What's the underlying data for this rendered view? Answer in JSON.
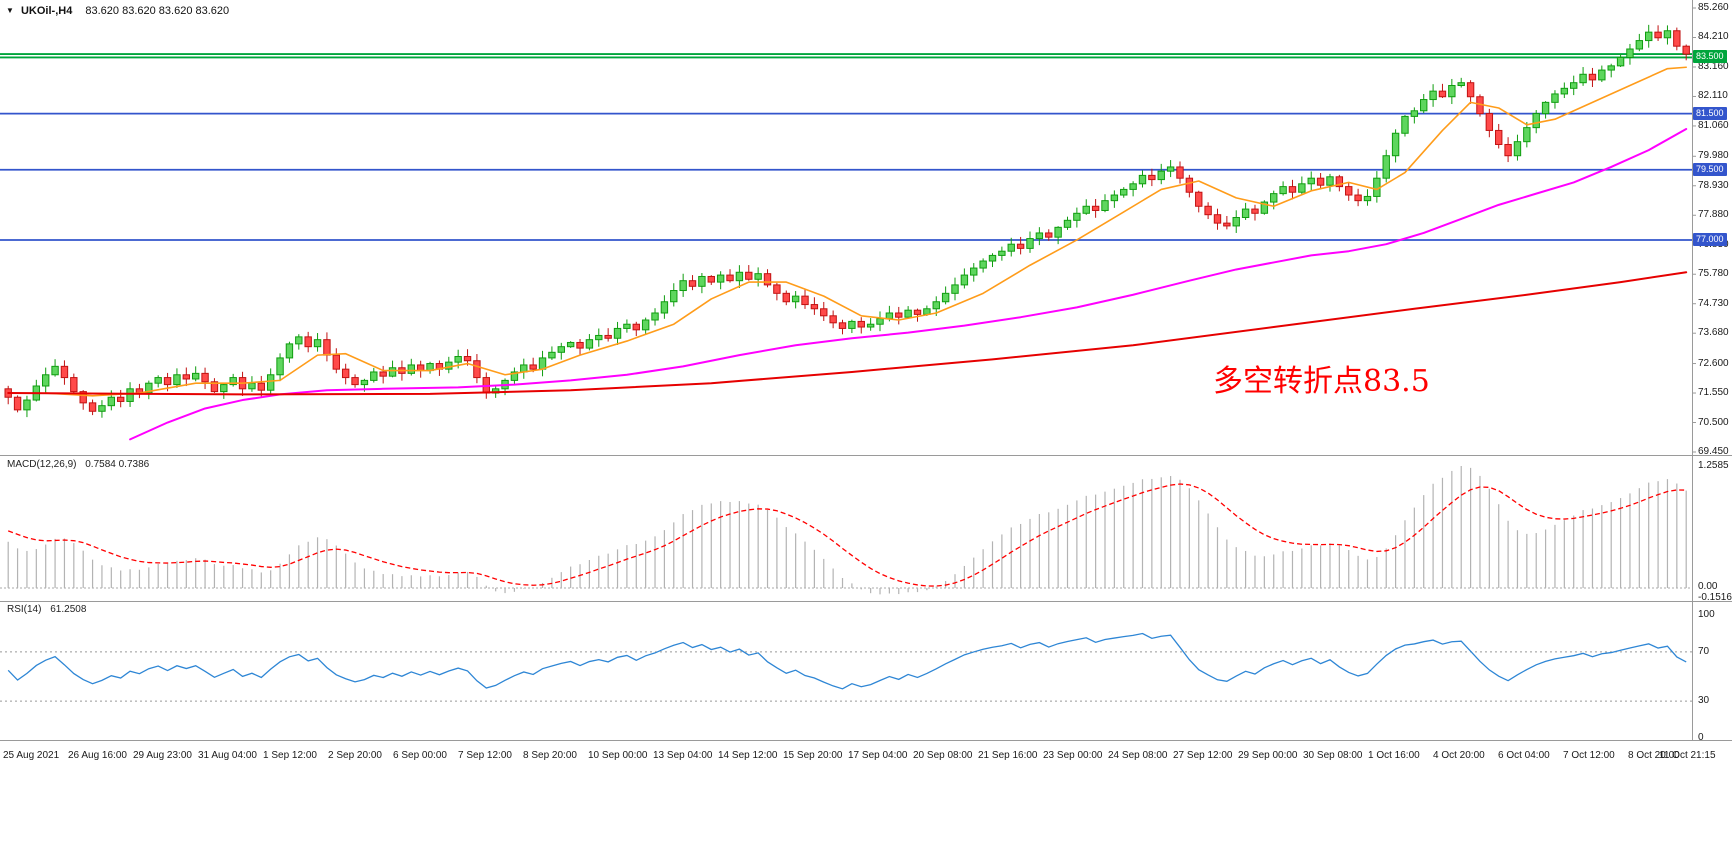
{
  "header": {
    "expander": "▼",
    "symbol": "UKOil-,H4",
    "quotes": "83.620 83.620 83.620 83.620"
  },
  "annotation": {
    "text": "多空转折点83.5",
    "color": "#ff0000"
  },
  "price_axis": {
    "labels": [
      "85.260",
      "84.210",
      "83.160",
      "82.110",
      "81.060",
      "79.980",
      "78.930",
      "77.880",
      "76.830",
      "75.780",
      "74.730",
      "73.680",
      "72.600",
      "71.550",
      "70.500",
      "69.450"
    ]
  },
  "time_axis": {
    "labels": [
      "25 Aug 2021",
      "26 Aug 16:00",
      "29 Aug 23:00",
      "31 Aug 04:00",
      "1 Sep 12:00",
      "2 Sep 20:00",
      "6 Sep 00:00",
      "7 Sep 12:00",
      "8 Sep 20:00",
      "10 Sep 00:00",
      "13 Sep 04:00",
      "14 Sep 12:00",
      "15 Sep 20:00",
      "17 Sep 04:00",
      "20 Sep 08:00",
      "21 Sep 16:00",
      "23 Sep 00:00",
      "24 Sep 08:00",
      "27 Sep 12:00",
      "29 Sep 00:00",
      "30 Sep 08:00",
      "1 Oct 16:00",
      "4 Oct 20:00",
      "6 Oct 04:00",
      "7 Oct 12:00",
      "8 Oct 20:00",
      "11 Oct 21:15"
    ]
  },
  "colors": {
    "background": "#ffffff",
    "candle_up": "#5ed65e",
    "candle_up_border": "#0f9d0f",
    "candle_down": "#ff4a4a",
    "candle_down_border": "#c11212",
    "macd_bar": "#b3b3b3",
    "macd_signal": "#ff0000",
    "rsi_line": "#2e86d5",
    "grid": "#9a9a9a",
    "hline_blue": "#3355cc",
    "hline_green": "#00a53c",
    "annotation_red": "#ff0000"
  },
  "chart_data": [
    {
      "type": "candlestick",
      "title": "UKOil- H4",
      "ylim": [
        69.45,
        85.26
      ],
      "open_first": 71.7,
      "closes": [
        71.4,
        70.95,
        71.3,
        71.8,
        72.2,
        72.5,
        72.1,
        71.6,
        71.2,
        70.9,
        71.1,
        71.4,
        71.25,
        71.7,
        71.55,
        71.9,
        72.1,
        71.85,
        72.2,
        72.05,
        72.25,
        71.95,
        71.6,
        71.85,
        72.1,
        71.7,
        71.9,
        71.65,
        72.2,
        72.8,
        73.3,
        73.55,
        73.2,
        73.45,
        72.9,
        72.4,
        72.1,
        71.85,
        72.0,
        72.3,
        72.15,
        72.45,
        72.25,
        72.55,
        72.35,
        72.6,
        72.4,
        72.65,
        72.85,
        72.7,
        72.1,
        71.55,
        71.7,
        72.0,
        72.3,
        72.55,
        72.4,
        72.8,
        73.0,
        73.2,
        73.35,
        73.15,
        73.45,
        73.6,
        73.5,
        73.85,
        74.0,
        73.8,
        74.15,
        74.4,
        74.8,
        75.2,
        75.55,
        75.35,
        75.7,
        75.5,
        75.75,
        75.55,
        75.85,
        75.6,
        75.8,
        75.4,
        75.1,
        74.8,
        75.0,
        74.7,
        74.55,
        74.3,
        74.05,
        73.85,
        74.1,
        73.9,
        74.0,
        74.2,
        74.4,
        74.25,
        74.5,
        74.35,
        74.55,
        74.8,
        75.1,
        75.4,
        75.75,
        76.0,
        76.25,
        76.45,
        76.6,
        76.85,
        76.7,
        77.05,
        77.25,
        77.1,
        77.45,
        77.7,
        77.95,
        78.2,
        78.05,
        78.4,
        78.6,
        78.8,
        79.0,
        79.3,
        79.15,
        79.45,
        79.6,
        79.2,
        78.7,
        78.2,
        77.9,
        77.6,
        77.5,
        77.8,
        78.1,
        77.95,
        78.35,
        78.65,
        78.9,
        78.7,
        79.0,
        79.2,
        78.95,
        79.25,
        78.9,
        78.6,
        78.4,
        78.55,
        79.2,
        80.0,
        80.8,
        81.4,
        81.6,
        82.0,
        82.3,
        82.1,
        82.5,
        82.6,
        82.1,
        81.5,
        80.9,
        80.4,
        80.0,
        80.5,
        81.0,
        81.5,
        81.9,
        82.2,
        82.4,
        82.6,
        82.9,
        82.7,
        83.05,
        83.2,
        83.5,
        83.8,
        84.1,
        84.4,
        84.2,
        84.45,
        83.9,
        83.62
      ],
      "moving_averages": [
        {
          "name": "ma-fast",
          "color": "#ff9c1a",
          "width": 1.6,
          "anchors": [
            [
              4,
              71.55
            ],
            [
              9,
              71.45
            ],
            [
              14,
              71.55
            ],
            [
              20,
              71.9
            ],
            [
              25,
              71.9
            ],
            [
              29,
              72.0
            ],
            [
              33,
              72.9
            ],
            [
              36,
              72.95
            ],
            [
              40,
              72.35
            ],
            [
              45,
              72.35
            ],
            [
              49,
              72.6
            ],
            [
              53,
              72.2
            ],
            [
              57,
              72.4
            ],
            [
              61,
              72.9
            ],
            [
              66,
              73.4
            ],
            [
              71,
              74.0
            ],
            [
              75,
              74.9
            ],
            [
              79,
              75.5
            ],
            [
              83,
              75.5
            ],
            [
              87,
              75.0
            ],
            [
              91,
              74.3
            ],
            [
              95,
              74.15
            ],
            [
              99,
              74.4
            ],
            [
              104,
              75.1
            ],
            [
              109,
              76.1
            ],
            [
              114,
              77.0
            ],
            [
              119,
              78.0
            ],
            [
              123,
              78.8
            ],
            [
              127,
              79.1
            ],
            [
              131,
              78.5
            ],
            [
              135,
              78.2
            ],
            [
              139,
              78.75
            ],
            [
              143,
              79.05
            ],
            [
              146,
              78.8
            ],
            [
              149,
              79.4
            ],
            [
              153,
              80.9
            ],
            [
              156,
              81.9
            ],
            [
              159,
              81.7
            ],
            [
              162,
              81.1
            ],
            [
              165,
              81.3
            ],
            [
              169,
              81.9
            ],
            [
              173,
              82.5
            ],
            [
              177,
              83.1
            ],
            [
              179,
              83.15
            ]
          ]
        },
        {
          "name": "ma-medium",
          "color": "#ff00ff",
          "width": 2,
          "anchors": [
            [
              13,
              69.9
            ],
            [
              17,
              70.5
            ],
            [
              21,
              71.0
            ],
            [
              25,
              71.3
            ],
            [
              29,
              71.5
            ],
            [
              34,
              71.65
            ],
            [
              40,
              71.7
            ],
            [
              48,
              71.75
            ],
            [
              54,
              71.85
            ],
            [
              60,
              72.0
            ],
            [
              66,
              72.2
            ],
            [
              72,
              72.5
            ],
            [
              78,
              72.9
            ],
            [
              84,
              73.25
            ],
            [
              90,
              73.5
            ],
            [
              96,
              73.7
            ],
            [
              102,
              73.95
            ],
            [
              108,
              74.25
            ],
            [
              114,
              74.6
            ],
            [
              120,
              75.05
            ],
            [
              126,
              75.55
            ],
            [
              131,
              75.95
            ],
            [
              135,
              76.2
            ],
            [
              139,
              76.45
            ],
            [
              143,
              76.6
            ],
            [
              147,
              76.85
            ],
            [
              151,
              77.25
            ],
            [
              155,
              77.75
            ],
            [
              159,
              78.25
            ],
            [
              163,
              78.65
            ],
            [
              167,
              79.05
            ],
            [
              171,
              79.6
            ],
            [
              175,
              80.2
            ],
            [
              179,
              80.95
            ]
          ]
        },
        {
          "name": "ma-slow",
          "color": "#e60000",
          "width": 2,
          "anchors": [
            [
              0,
              71.55
            ],
            [
              25,
              71.5
            ],
            [
              45,
              71.52
            ],
            [
              60,
              71.65
            ],
            [
              75,
              71.9
            ],
            [
              90,
              72.3
            ],
            [
              105,
              72.75
            ],
            [
              120,
              73.25
            ],
            [
              135,
              73.9
            ],
            [
              150,
              74.55
            ],
            [
              162,
              75.05
            ],
            [
              172,
              75.5
            ],
            [
              179,
              75.85
            ]
          ]
        }
      ],
      "horizontal_lines": [
        {
          "price": 83.62,
          "color": "#00a53c"
        },
        {
          "price": 83.5,
          "color": "#00a53c",
          "badge": "83.500"
        },
        {
          "price": 81.5,
          "color": "#3355cc",
          "badge": "81.500"
        },
        {
          "price": 79.5,
          "color": "#3355cc",
          "badge": "79.500"
        },
        {
          "price": 77.0,
          "color": "#3355cc",
          "badge": "77.000"
        }
      ]
    },
    {
      "type": "macd",
      "label": "MACD(12,26,9)",
      "values_text": "0.7584 0.7386",
      "params": [
        12,
        26,
        9
      ],
      "axis_labels": [
        "1.2585",
        "0.00",
        "-0.1516"
      ]
    },
    {
      "type": "rsi",
      "label": "RSI(14)",
      "value_text": "61.2508",
      "period": 14,
      "levels": [
        70,
        30
      ],
      "axis_labels": [
        "100",
        "70",
        "30",
        "0"
      ]
    }
  ]
}
